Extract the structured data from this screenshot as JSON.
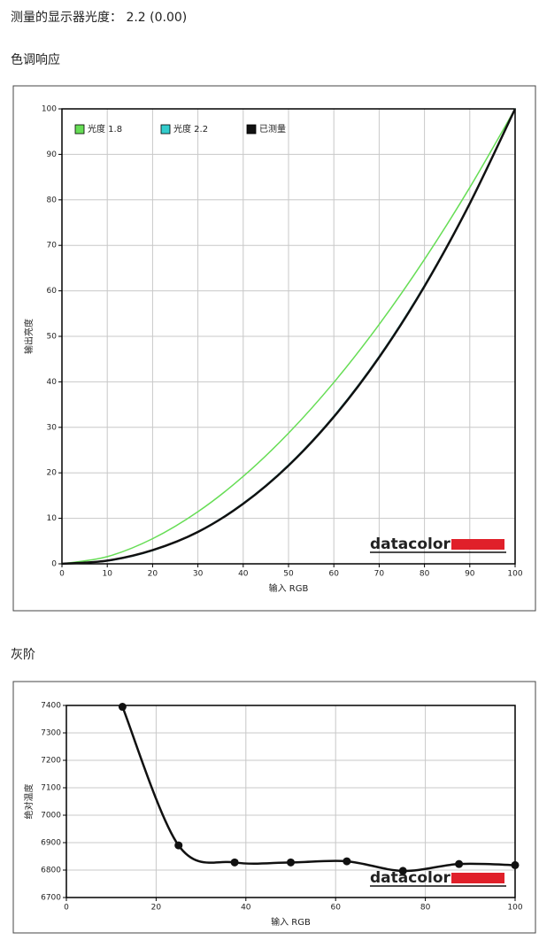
{
  "summary": "测量的显示器光度：  2.2 (0.00)",
  "sections": [
    "色调响应",
    "灰阶"
  ],
  "chart_data": [
    {
      "type": "line",
      "x": [
        0,
        10,
        20,
        30,
        40,
        50,
        60,
        70,
        80,
        90,
        100
      ],
      "xlabel": "输入 RGB",
      "ylabel": "输出亮度",
      "xlim": [
        0,
        100
      ],
      "ylim": [
        0,
        100
      ],
      "xticks": [
        0,
        10,
        20,
        30,
        40,
        50,
        60,
        70,
        80,
        90,
        100
      ],
      "yticks": [
        0,
        10,
        20,
        30,
        40,
        50,
        60,
        70,
        80,
        90,
        100
      ],
      "grid": true,
      "legend": "upper left",
      "watermark": "datacolor",
      "series": [
        {
          "name": "光度 1.8",
          "color": "#66dd55",
          "values": [
            0,
            1.58,
            5.52,
            11.45,
            19.22,
            28.72,
            39.87,
            52.62,
            66.92,
            82.72,
            100
          ]
        },
        {
          "name": "光度 2.2",
          "color": "#33cccc",
          "values": [
            0,
            0.63,
            2.9,
            7.07,
            13.32,
            21.76,
            32.5,
            45.62,
            61.2,
            79.31,
            100
          ]
        },
        {
          "name": "已测量",
          "color": "#111111",
          "values": [
            0,
            0.7,
            3.0,
            7.0,
            13.2,
            21.6,
            32.3,
            45.4,
            61.0,
            79.2,
            100
          ]
        }
      ]
    },
    {
      "type": "line",
      "x": [
        12.5,
        25,
        37.5,
        50,
        62.5,
        75,
        87.5,
        100
      ],
      "xlabel": "输入 RGB",
      "ylabel": "绝对温度",
      "xlim": [
        0,
        100
      ],
      "ylim": [
        6700,
        7400
      ],
      "xticks": [
        0,
        20,
        40,
        60,
        80,
        100
      ],
      "yticks": [
        6700,
        6800,
        6900,
        7000,
        7100,
        7200,
        7300,
        7400
      ],
      "grid": true,
      "markers": true,
      "watermark": "datacolor",
      "series": [
        {
          "color": "#111111",
          "values": [
            7395,
            6890,
            6828,
            6828,
            6832,
            6797,
            6822,
            6818
          ]
        }
      ]
    }
  ]
}
